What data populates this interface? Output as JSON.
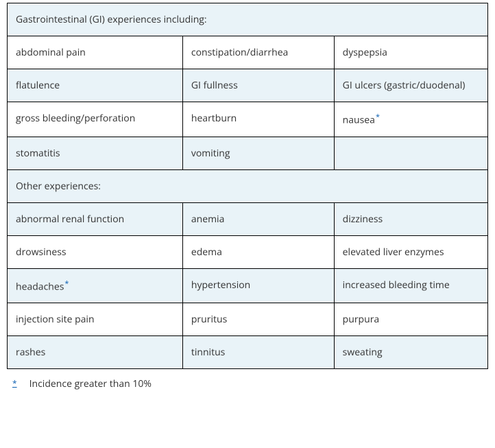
{
  "table": {
    "border_color": "#000000",
    "shade_color": "#e9f3f8",
    "plain_color": "#ffffff",
    "text_color": "#333333",
    "font_size": 14,
    "sections": [
      {
        "header": "Gastrointestinal (GI) experiences including:",
        "rows": [
          [
            {
              "text": "abdominal pain"
            },
            {
              "text": "constipation/diarrhea"
            },
            {
              "text": "dyspepsia"
            }
          ],
          [
            {
              "text": "flatulence"
            },
            {
              "text": "GI fullness"
            },
            {
              "text": "GI ulcers (gastric/duodenal)"
            }
          ],
          [
            {
              "text": "gross bleeding/perforation"
            },
            {
              "text": "heartburn"
            },
            {
              "text": "nausea",
              "footnote": "*"
            }
          ],
          [
            {
              "text": "stomatitis"
            },
            {
              "text": "vomiting"
            },
            {
              "text": ""
            }
          ]
        ],
        "shaded_row_indices": [
          1,
          3
        ]
      },
      {
        "header": "Other experiences:",
        "rows": [
          [
            {
              "text": "abnormal renal function"
            },
            {
              "text": "anemia"
            },
            {
              "text": "dizziness"
            }
          ],
          [
            {
              "text": "drowsiness"
            },
            {
              "text": "edema"
            },
            {
              "text": "elevated liver enzymes"
            }
          ],
          [
            {
              "text": "headaches",
              "footnote": "*"
            },
            {
              "text": "hypertension"
            },
            {
              "text": "increased bleeding time"
            }
          ],
          [
            {
              "text": "injection site pain"
            },
            {
              "text": "pruritus"
            },
            {
              "text": "purpura"
            }
          ],
          [
            {
              "text": "rashes"
            },
            {
              "text": "tinnitus"
            },
            {
              "text": "sweating"
            }
          ]
        ],
        "shaded_row_indices": [
          0,
          2,
          4
        ]
      }
    ]
  },
  "footnote": {
    "symbol": "*",
    "text": "Incidence greater than 10%",
    "link_color": "#0b5fb2"
  }
}
